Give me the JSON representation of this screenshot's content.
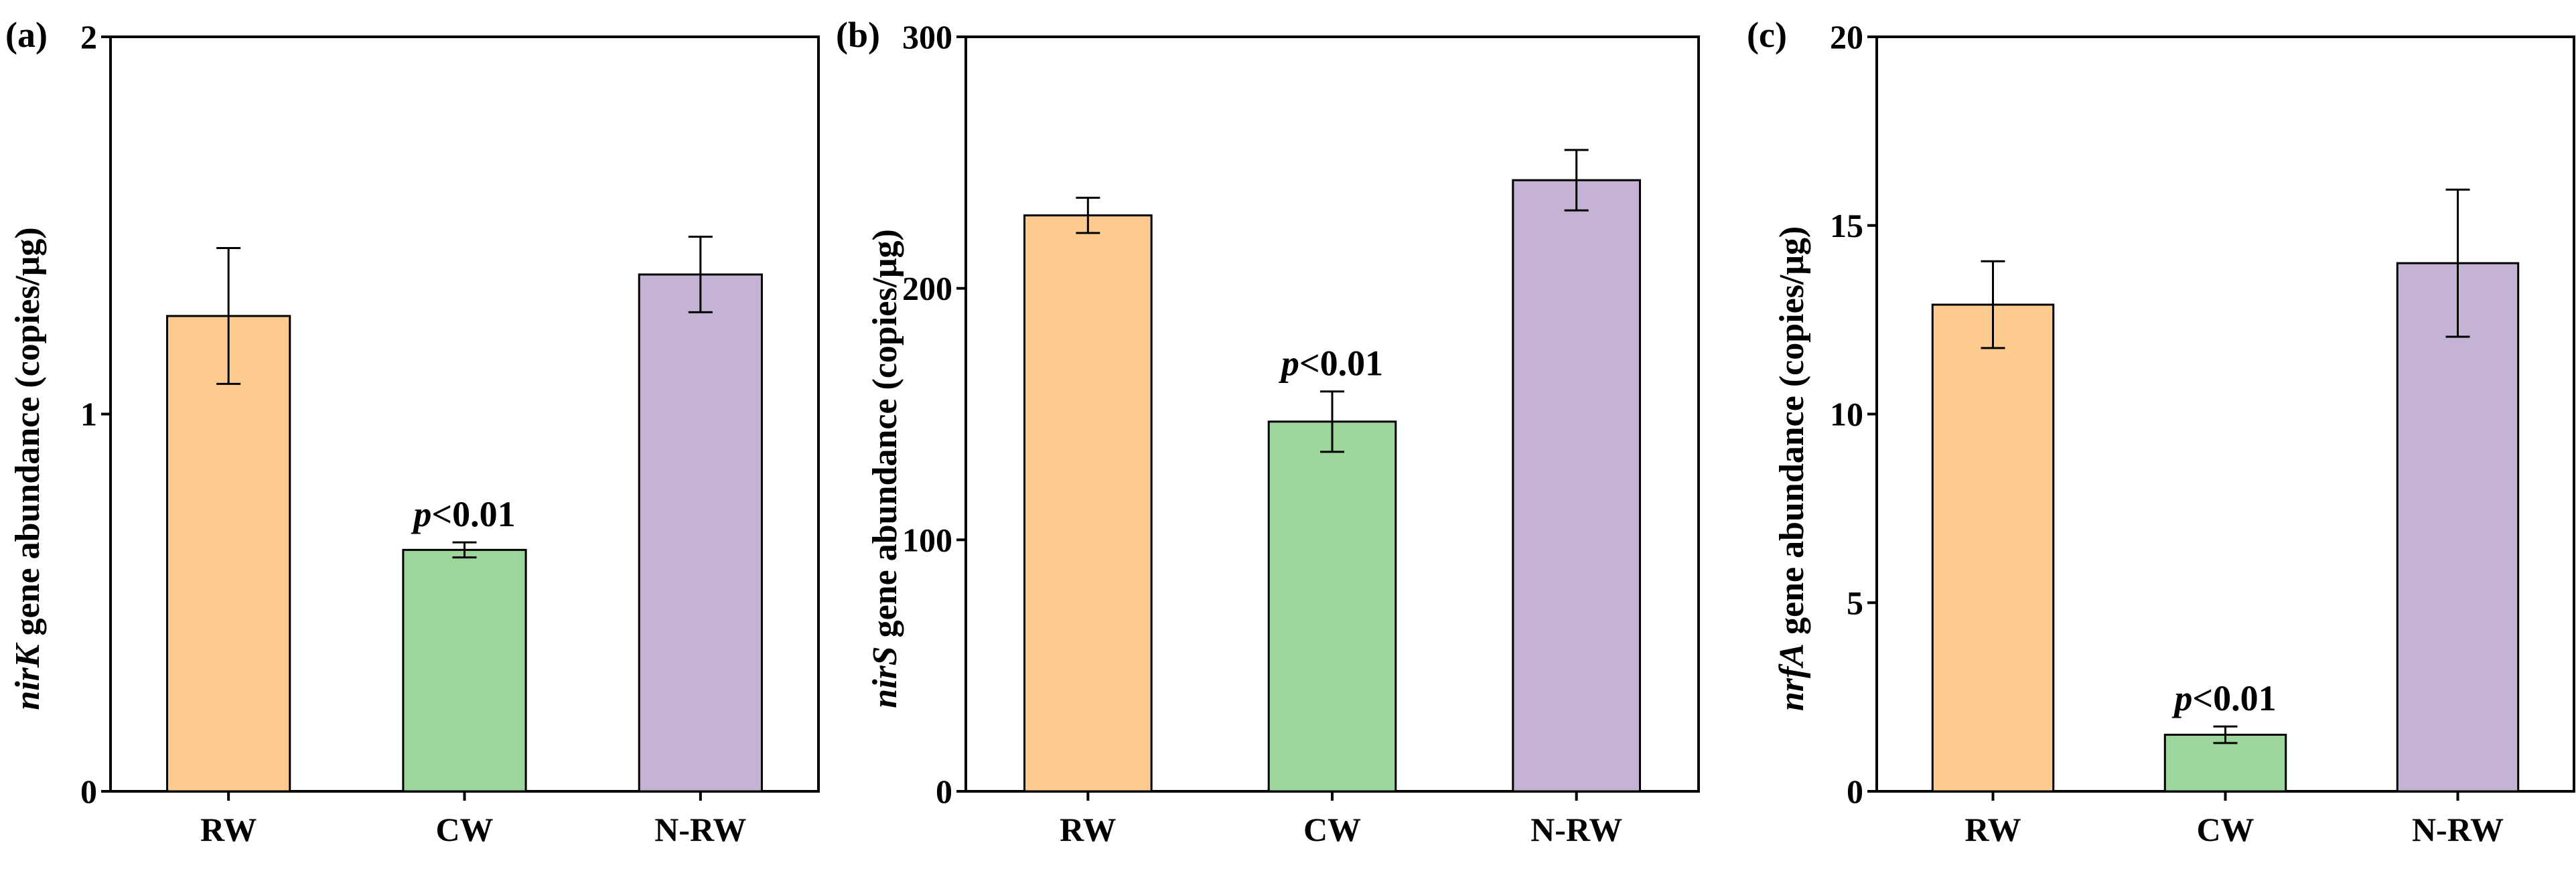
{
  "chart_data": [
    {
      "type": "bar",
      "panel_label": "(a)",
      "ylabel_italic": "nirK",
      "ylabel_rest": " gene abundance (copies/μg)",
      "ylim": [
        0,
        2
      ],
      "yticks": [
        0,
        1,
        2
      ],
      "categories": [
        "RW",
        "CW",
        "N-RW"
      ],
      "values": [
        1.26,
        0.64,
        1.37
      ],
      "errors": [
        0.18,
        0.02,
        0.1
      ],
      "annotation": {
        "italic": "p",
        "rest": "<0.01",
        "category": "CW"
      }
    },
    {
      "type": "bar",
      "panel_label": "(b)",
      "ylabel_italic": "nirS",
      "ylabel_rest": " gene abundance (copies/μg)",
      "ylim": [
        0,
        300
      ],
      "yticks": [
        0,
        100,
        200,
        300
      ],
      "categories": [
        "RW",
        "CW",
        "N-RW"
      ],
      "values": [
        229,
        147,
        243
      ],
      "errors": [
        7,
        12,
        12
      ],
      "annotation": {
        "italic": "p",
        "rest": "<0.01",
        "category": "CW"
      }
    },
    {
      "type": "bar",
      "panel_label": "(c)",
      "ylabel_italic": "nrfA",
      "ylabel_rest": " gene abundance (copies/μg)",
      "ylim": [
        0,
        20
      ],
      "yticks": [
        0,
        5,
        10,
        15,
        20
      ],
      "categories": [
        "RW",
        "CW",
        "N-RW"
      ],
      "values": [
        12.9,
        1.5,
        14.0
      ],
      "errors": [
        1.15,
        0.22,
        1.95
      ],
      "annotation": {
        "italic": "p",
        "rest": "<0.01",
        "category": "CW"
      }
    }
  ],
  "colors": {
    "RW": "#FDCB8F",
    "CW": "#9DD69B",
    "N-RW": "#C5B3D6"
  }
}
